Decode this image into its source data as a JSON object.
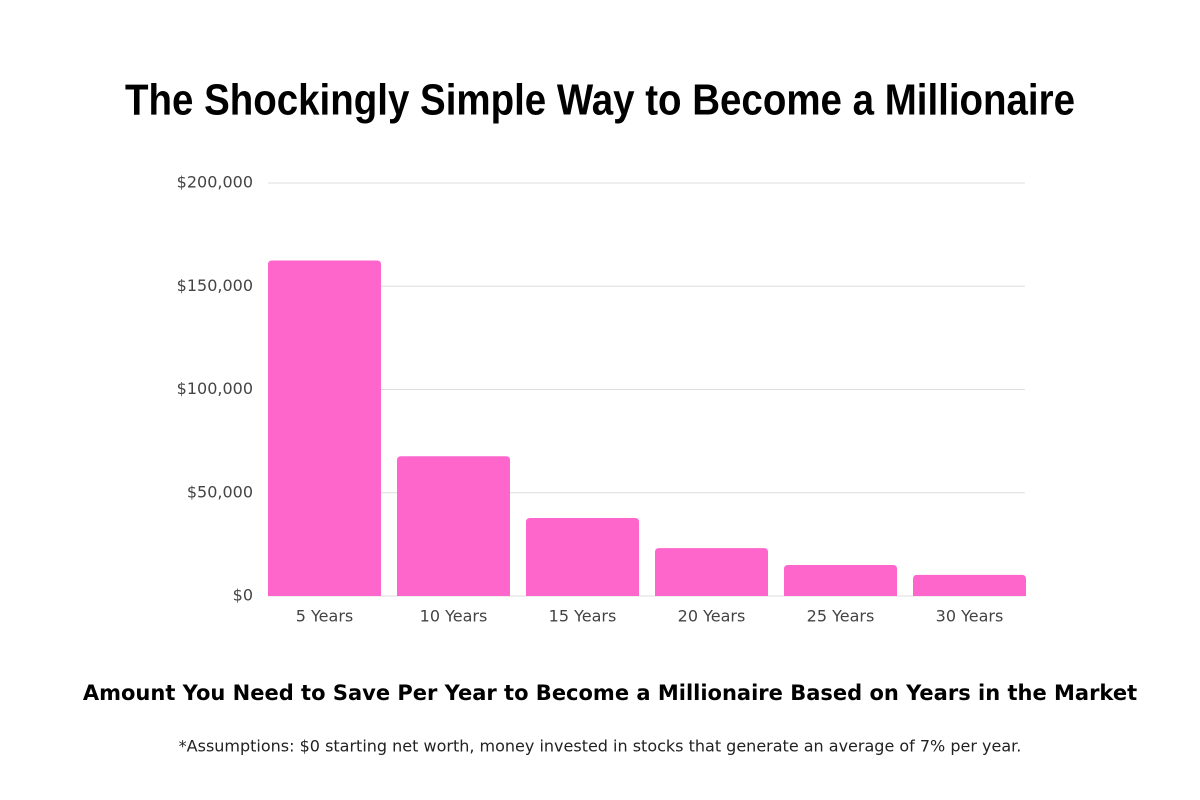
{
  "chart_data": {
    "type": "bar",
    "title": "The Shockingly Simple Way to Become a Millionaire",
    "subtitle": "Amount You Need to Save Per Year to Become a Millionaire Based on Years in the Market",
    "note": "*Assumptions: $0 starting net worth, money invested in stocks that generate an average of 7% per year.",
    "categories": [
      "5 Years",
      "10 Years",
      "15 Years",
      "20 Years",
      "25 Years",
      "30 Years"
    ],
    "values": [
      162500,
      67700,
      37800,
      23200,
      15000,
      10200
    ],
    "color": "#ff66cc",
    "ylim": [
      0,
      200000
    ],
    "yticks": [
      {
        "value": 0,
        "label": "$0"
      },
      {
        "value": 50000,
        "label": "$50,000"
      },
      {
        "value": 100000,
        "label": "$100,000"
      },
      {
        "value": 150000,
        "label": "$150,000"
      },
      {
        "value": 200000,
        "label": "$200,000"
      }
    ],
    "grid": true
  }
}
